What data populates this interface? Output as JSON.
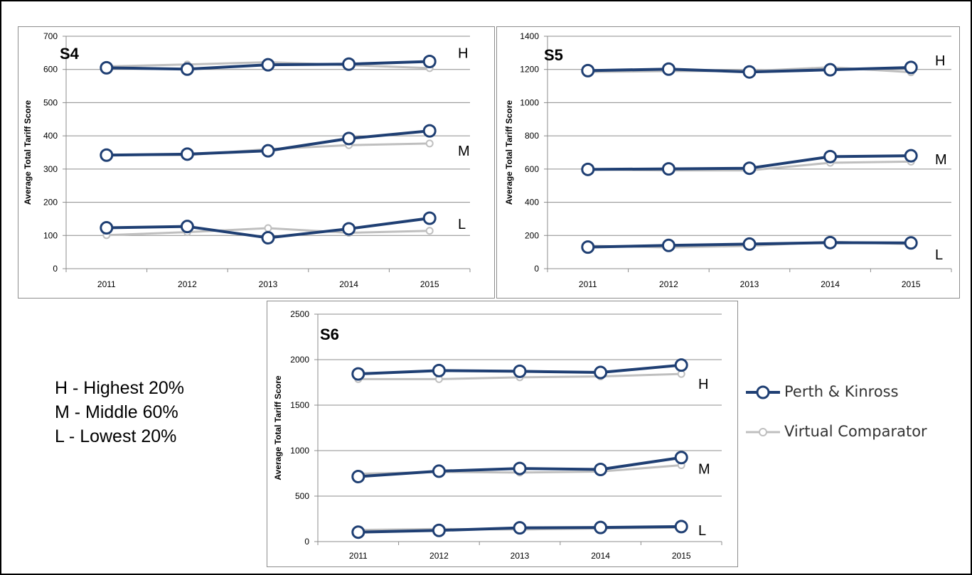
{
  "key": {
    "lines": [
      "H - Highest 20%",
      "M - Middle 60%",
      "L - Lowest 20%"
    ]
  },
  "legend": {
    "items": [
      {
        "label": "Perth & Kinross",
        "color": "#1f3f73"
      },
      {
        "label": "Virtual Comparator",
        "color": "#bfbfbf"
      }
    ]
  },
  "chart_data": [
    {
      "type": "line",
      "title": "S4",
      "ylabel": "Average Total Tariff Score",
      "xlabel": "",
      "categories": [
        "2011",
        "2012",
        "2013",
        "2014",
        "2015"
      ],
      "ylim": [
        0,
        700
      ],
      "ytick_step": 100,
      "grid": true,
      "group_labels": [
        {
          "text": "H",
          "y": 650
        },
        {
          "text": "M",
          "y": 355
        },
        {
          "text": "L",
          "y": 135
        }
      ],
      "series": [
        {
          "name": "Perth & Kinross",
          "group": "H",
          "values": [
            605,
            601,
            614,
            616,
            624
          ]
        },
        {
          "name": "Virtual Comparator",
          "group": "H",
          "values": [
            609,
            615,
            622,
            613,
            604
          ]
        },
        {
          "name": "Perth & Kinross",
          "group": "M",
          "values": [
            342,
            345,
            355,
            392,
            415
          ]
        },
        {
          "name": "Virtual Comparator",
          "group": "M",
          "values": [
            343,
            342,
            360,
            372,
            377
          ]
        },
        {
          "name": "Perth & Kinross",
          "group": "L",
          "values": [
            123,
            127,
            93,
            120,
            152
          ]
        },
        {
          "name": "Virtual Comparator",
          "group": "L",
          "values": [
            101,
            110,
            122,
            108,
            114
          ]
        }
      ]
    },
    {
      "type": "line",
      "title": "S5",
      "ylabel": "Average Total Tariff Score",
      "xlabel": "",
      "categories": [
        "2011",
        "2012",
        "2013",
        "2014",
        "2015"
      ],
      "ylim": [
        0,
        1400
      ],
      "ytick_step": 200,
      "grid": true,
      "group_labels": [
        {
          "text": "H",
          "y": 1255
        },
        {
          "text": "M",
          "y": 660
        },
        {
          "text": "L",
          "y": 85
        }
      ],
      "series": [
        {
          "name": "Perth & Kinross",
          "group": "H",
          "values": [
            1193,
            1202,
            1185,
            1198,
            1212
          ]
        },
        {
          "name": "Virtual Comparator",
          "group": "H",
          "values": [
            1185,
            1190,
            1190,
            1213,
            1183
          ]
        },
        {
          "name": "Perth & Kinross",
          "group": "M",
          "values": [
            598,
            601,
            605,
            675,
            680
          ]
        },
        {
          "name": "Virtual Comparator",
          "group": "M",
          "values": [
            597,
            592,
            592,
            638,
            645
          ]
        },
        {
          "name": "Perth & Kinross",
          "group": "L",
          "values": [
            130,
            140,
            148,
            157,
            155
          ]
        },
        {
          "name": "Virtual Comparator",
          "group": "L",
          "values": [
            138,
            128,
            137,
            162,
            148
          ]
        }
      ]
    },
    {
      "type": "line",
      "title": "S6",
      "ylabel": "Average Total Tariff Score",
      "xlabel": "",
      "categories": [
        "2011",
        "2012",
        "2013",
        "2014",
        "2015"
      ],
      "ylim": [
        0,
        2500
      ],
      "ytick_step": 500,
      "grid": true,
      "group_labels": [
        {
          "text": "H",
          "y": 1735
        },
        {
          "text": "M",
          "y": 800
        },
        {
          "text": "L",
          "y": 125
        }
      ],
      "series": [
        {
          "name": "Perth & Kinross",
          "group": "H",
          "values": [
            1843,
            1880,
            1872,
            1859,
            1940
          ]
        },
        {
          "name": "Virtual Comparator",
          "group": "H",
          "values": [
            1786,
            1786,
            1806,
            1815,
            1843
          ]
        },
        {
          "name": "Perth & Kinross",
          "group": "M",
          "values": [
            715,
            774,
            804,
            793,
            924
          ]
        },
        {
          "name": "Virtual Comparator",
          "group": "M",
          "values": [
            745,
            766,
            759,
            770,
            840
          ]
        },
        {
          "name": "Perth & Kinross",
          "group": "L",
          "values": [
            104,
            123,
            151,
            155,
            165
          ]
        },
        {
          "name": "Virtual Comparator",
          "group": "L",
          "values": [
            128,
            139,
            133,
            145,
            154
          ]
        }
      ]
    }
  ]
}
